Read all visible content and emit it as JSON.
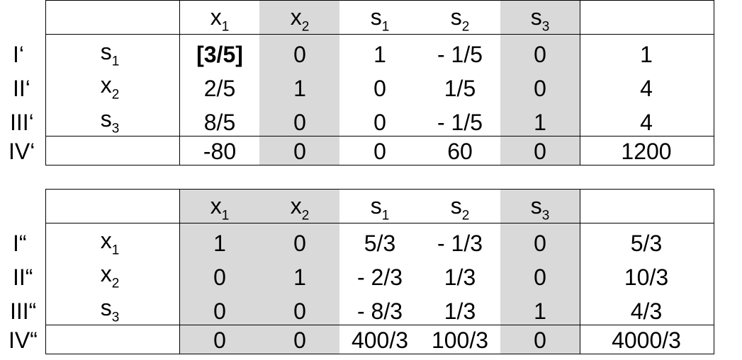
{
  "tableau1": {
    "header": [
      {
        "base": "x",
        "sub": "1"
      },
      {
        "base": "x",
        "sub": "2"
      },
      {
        "base": "s",
        "sub": "1"
      },
      {
        "base": "s",
        "sub": "2"
      },
      {
        "base": "s",
        "sub": "3"
      }
    ],
    "rows": [
      {
        "label": "I‘",
        "basis": {
          "base": "s",
          "sub": "1"
        },
        "cells": [
          "[3/5]",
          "0",
          "1",
          "- 1/5",
          "0"
        ],
        "rhs": "1"
      },
      {
        "label": "II‘",
        "basis": {
          "base": "x",
          "sub": "2"
        },
        "cells": [
          "2/5",
          "1",
          "0",
          "1/5",
          "0"
        ],
        "rhs": "4"
      },
      {
        "label": "III‘",
        "basis": {
          "base": "s",
          "sub": "3"
        },
        "cells": [
          "8/5",
          "0",
          "0",
          "- 1/5",
          "1"
        ],
        "rhs": "4"
      },
      {
        "label": "IV‘",
        "basis": null,
        "cells": [
          "-80",
          "0",
          "0",
          "60",
          "0"
        ],
        "rhs": "1200"
      }
    ],
    "pivot_element": "[3/5]"
  },
  "tableau2": {
    "header": [
      {
        "base": "x",
        "sub": "1"
      },
      {
        "base": "x",
        "sub": "2"
      },
      {
        "base": "s",
        "sub": "1"
      },
      {
        "base": "s",
        "sub": "2"
      },
      {
        "base": "s",
        "sub": "3"
      }
    ],
    "rows": [
      {
        "label": "I“",
        "basis": {
          "base": "x",
          "sub": "1"
        },
        "cells": [
          "1",
          "0",
          "5/3",
          "- 1/3",
          "0"
        ],
        "rhs": "5/3"
      },
      {
        "label": "II“",
        "basis": {
          "base": "x",
          "sub": "2"
        },
        "cells": [
          "0",
          "1",
          "- 2/3",
          "1/3",
          "0"
        ],
        "rhs": "10/3"
      },
      {
        "label": "III“",
        "basis": {
          "base": "s",
          "sub": "3"
        },
        "cells": [
          "0",
          "0",
          "- 8/3",
          "1/3",
          "1"
        ],
        "rhs": "4/3"
      },
      {
        "label": "IV“",
        "basis": null,
        "cells": [
          "0",
          "0",
          "400/3",
          "100/3",
          "0"
        ],
        "rhs": "4000/3"
      }
    ]
  },
  "colors": {
    "shade": "#d9d9d9",
    "lines": "#000000"
  }
}
